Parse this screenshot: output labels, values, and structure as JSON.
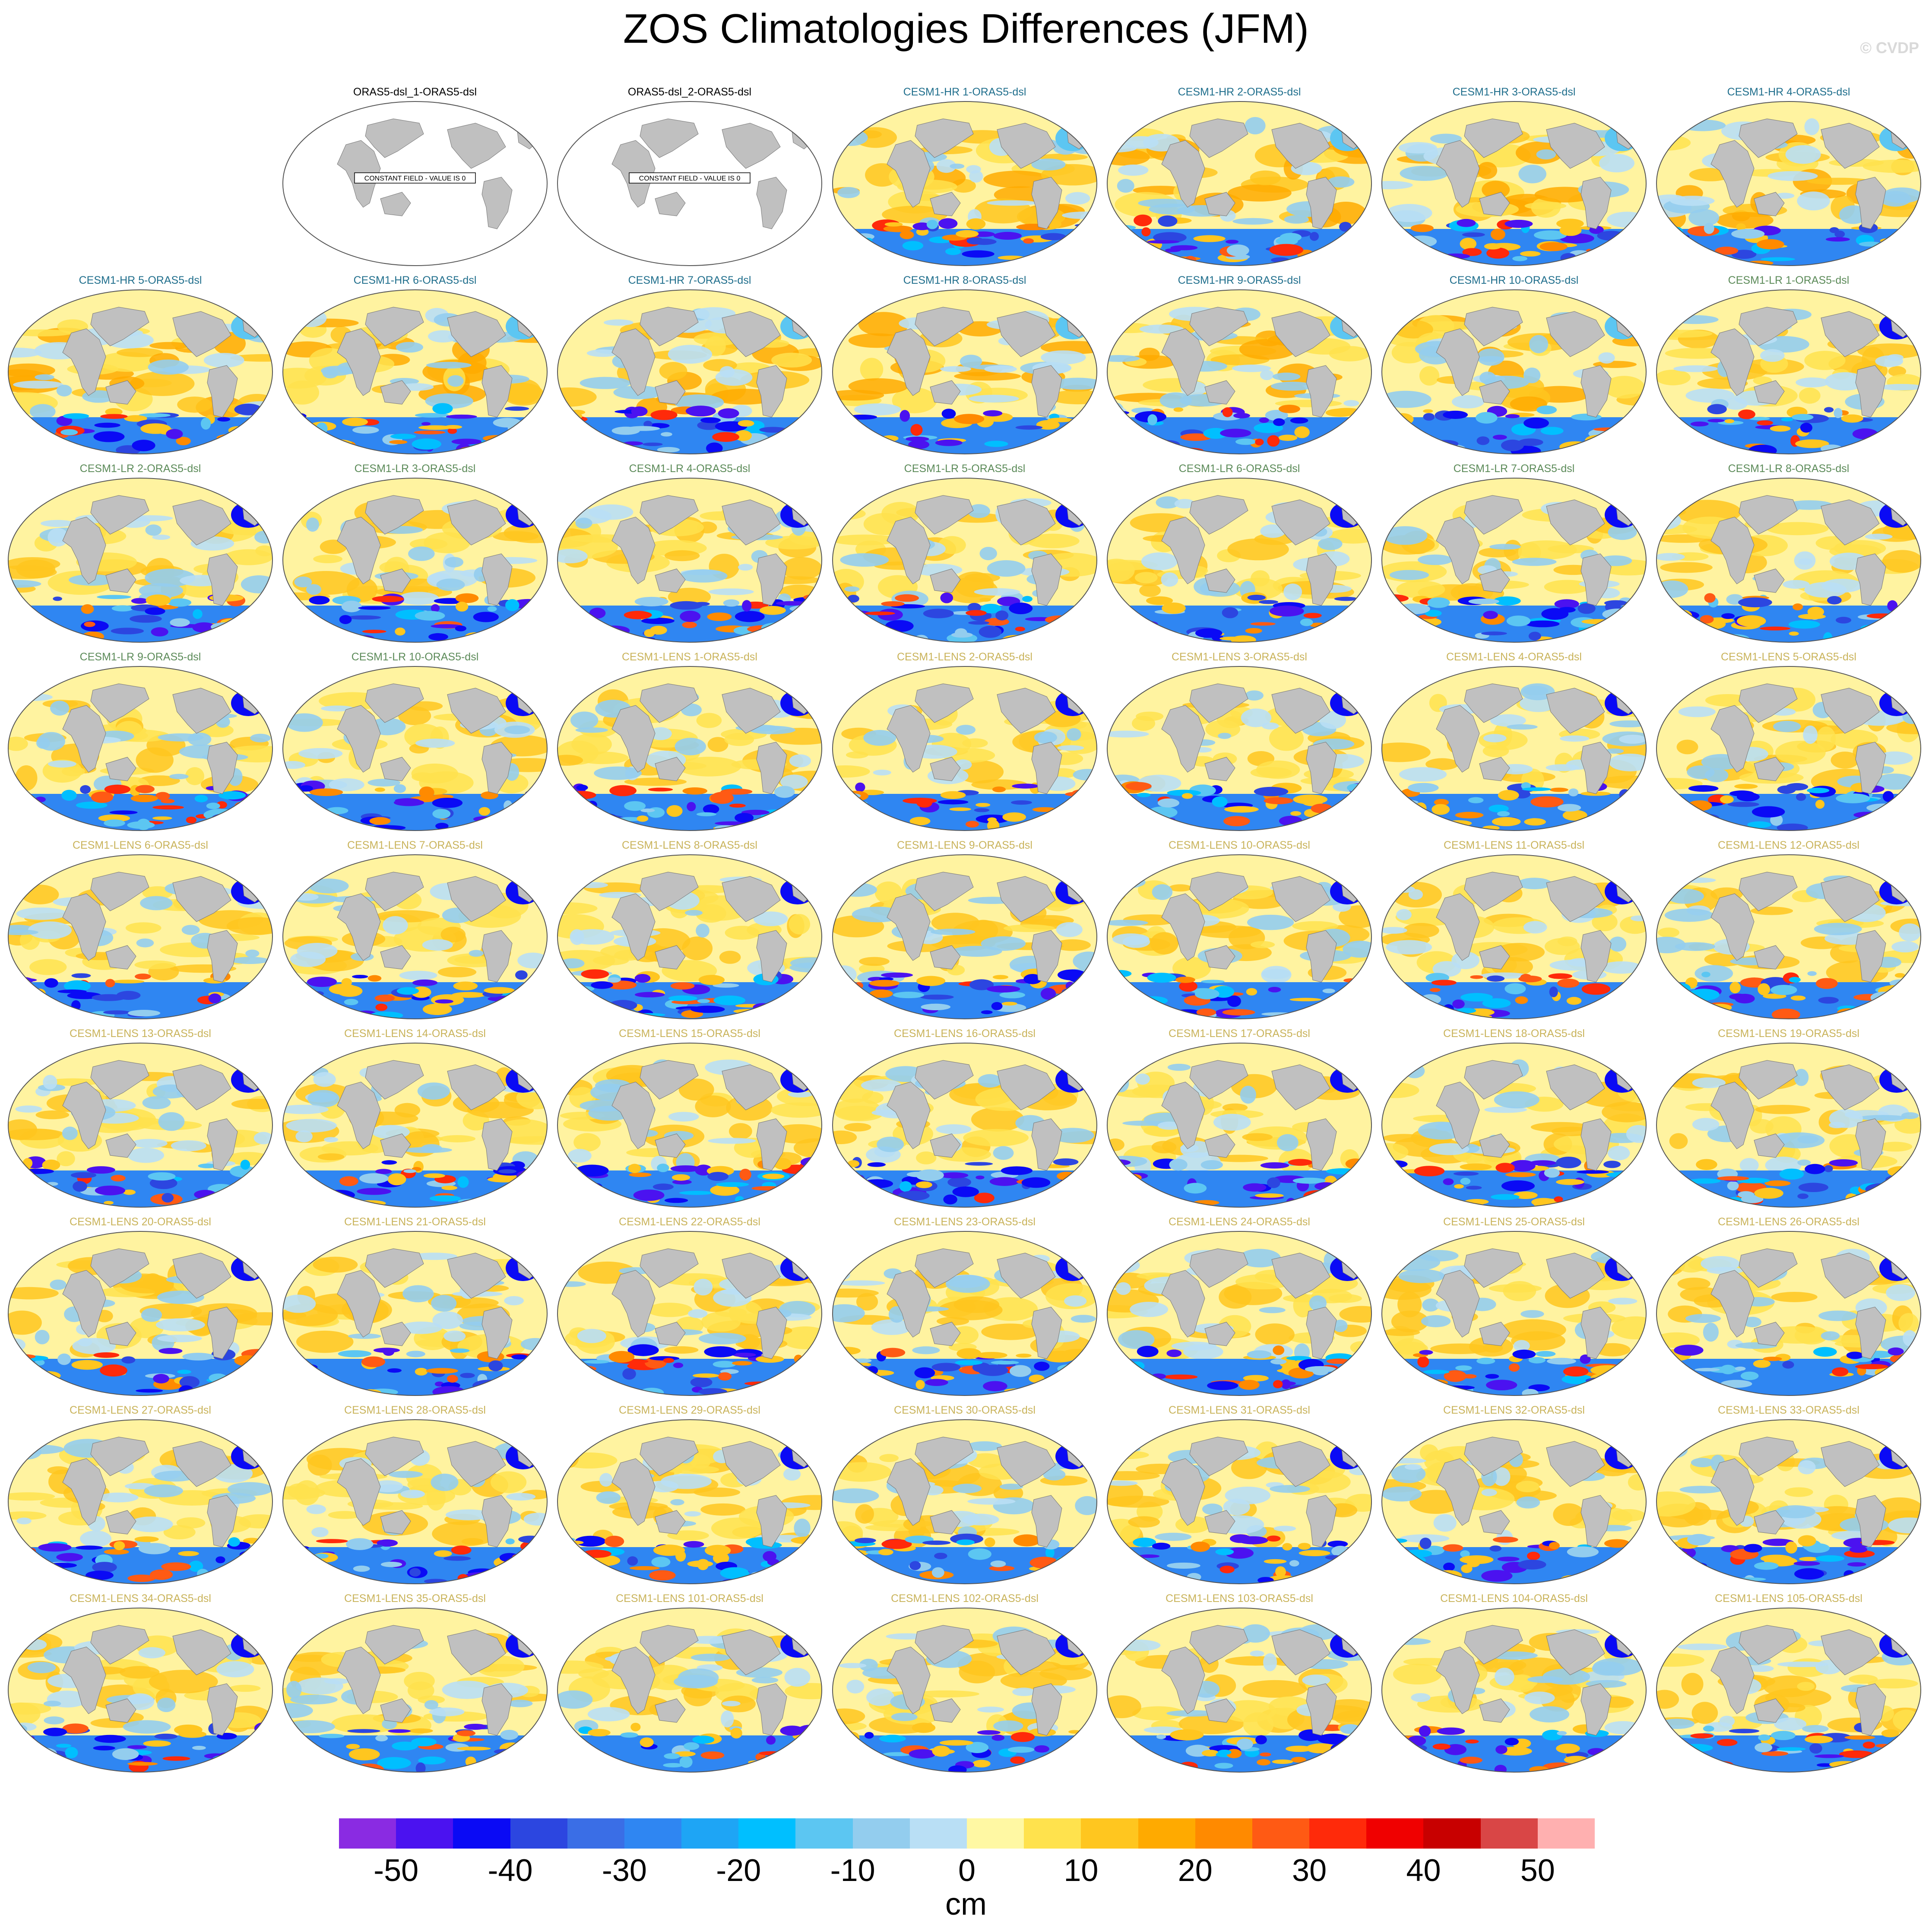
{
  "figure": {
    "title": "ZOS Climatologies Differences (JFM)",
    "watermark": "© CVDP"
  },
  "panels": [
    {
      "title": "ORAS5-dsl_1-ORAS5-dsl",
      "color": "#000000",
      "kind": "constant",
      "note": "CONSTANT FIELD - VALUE IS 0"
    },
    {
      "title": "ORAS5-dsl_2-ORAS5-dsl",
      "color": "#000000",
      "kind": "constant",
      "note": "CONSTANT FIELD - VALUE IS 0"
    },
    {
      "title": "CESM1-HR 1-ORAS5-dsl",
      "color": "#1f6e8c",
      "kind": "hr"
    },
    {
      "title": "CESM1-HR 2-ORAS5-dsl",
      "color": "#1f6e8c",
      "kind": "hr"
    },
    {
      "title": "CESM1-HR 3-ORAS5-dsl",
      "color": "#1f6e8c",
      "kind": "hr"
    },
    {
      "title": "CESM1-HR 4-ORAS5-dsl",
      "color": "#1f6e8c",
      "kind": "hr"
    },
    {
      "title": "CESM1-HR 5-ORAS5-dsl",
      "color": "#1f6e8c",
      "kind": "hr"
    },
    {
      "title": "CESM1-HR 6-ORAS5-dsl",
      "color": "#1f6e8c",
      "kind": "hr"
    },
    {
      "title": "CESM1-HR 7-ORAS5-dsl",
      "color": "#1f6e8c",
      "kind": "hr"
    },
    {
      "title": "CESM1-HR 8-ORAS5-dsl",
      "color": "#1f6e8c",
      "kind": "hr"
    },
    {
      "title": "CESM1-HR 9-ORAS5-dsl",
      "color": "#1f6e8c",
      "kind": "hr"
    },
    {
      "title": "CESM1-HR 10-ORAS5-dsl",
      "color": "#1f6e8c",
      "kind": "hr"
    },
    {
      "title": "CESM1-LR 1-ORAS5-dsl",
      "color": "#5b8a58",
      "kind": "lr"
    },
    {
      "title": "CESM1-LR 2-ORAS5-dsl",
      "color": "#5b8a58",
      "kind": "lr"
    },
    {
      "title": "CESM1-LR 3-ORAS5-dsl",
      "color": "#5b8a58",
      "kind": "lr"
    },
    {
      "title": "CESM1-LR 4-ORAS5-dsl",
      "color": "#5b8a58",
      "kind": "lr"
    },
    {
      "title": "CESM1-LR 5-ORAS5-dsl",
      "color": "#5b8a58",
      "kind": "lr"
    },
    {
      "title": "CESM1-LR 6-ORAS5-dsl",
      "color": "#5b8a58",
      "kind": "lr"
    },
    {
      "title": "CESM1-LR 7-ORAS5-dsl",
      "color": "#5b8a58",
      "kind": "lr"
    },
    {
      "title": "CESM1-LR 8-ORAS5-dsl",
      "color": "#5b8a58",
      "kind": "lr"
    },
    {
      "title": "CESM1-LR 9-ORAS5-dsl",
      "color": "#5b8a58",
      "kind": "lr"
    },
    {
      "title": "CESM1-LR 10-ORAS5-dsl",
      "color": "#5b8a58",
      "kind": "lr"
    },
    {
      "title": "CESM1-LENS 1-ORAS5-dsl",
      "color": "#c9b35a",
      "kind": "lens"
    },
    {
      "title": "CESM1-LENS 2-ORAS5-dsl",
      "color": "#c9b35a",
      "kind": "lens"
    },
    {
      "title": "CESM1-LENS 3-ORAS5-dsl",
      "color": "#c9b35a",
      "kind": "lens"
    },
    {
      "title": "CESM1-LENS 4-ORAS5-dsl",
      "color": "#c9b35a",
      "kind": "lens"
    },
    {
      "title": "CESM1-LENS 5-ORAS5-dsl",
      "color": "#c9b35a",
      "kind": "lens"
    },
    {
      "title": "CESM1-LENS 6-ORAS5-dsl",
      "color": "#c9b35a",
      "kind": "lens"
    },
    {
      "title": "CESM1-LENS 7-ORAS5-dsl",
      "color": "#c9b35a",
      "kind": "lens"
    },
    {
      "title": "CESM1-LENS 8-ORAS5-dsl",
      "color": "#c9b35a",
      "kind": "lens"
    },
    {
      "title": "CESM1-LENS 9-ORAS5-dsl",
      "color": "#c9b35a",
      "kind": "lens"
    },
    {
      "title": "CESM1-LENS 10-ORAS5-dsl",
      "color": "#c9b35a",
      "kind": "lens"
    },
    {
      "title": "CESM1-LENS 11-ORAS5-dsl",
      "color": "#c9b35a",
      "kind": "lens"
    },
    {
      "title": "CESM1-LENS 12-ORAS5-dsl",
      "color": "#c9b35a",
      "kind": "lens"
    },
    {
      "title": "CESM1-LENS 13-ORAS5-dsl",
      "color": "#c9b35a",
      "kind": "lens"
    },
    {
      "title": "CESM1-LENS 14-ORAS5-dsl",
      "color": "#c9b35a",
      "kind": "lens"
    },
    {
      "title": "CESM1-LENS 15-ORAS5-dsl",
      "color": "#c9b35a",
      "kind": "lens"
    },
    {
      "title": "CESM1-LENS 16-ORAS5-dsl",
      "color": "#c9b35a",
      "kind": "lens"
    },
    {
      "title": "CESM1-LENS 17-ORAS5-dsl",
      "color": "#c9b35a",
      "kind": "lens"
    },
    {
      "title": "CESM1-LENS 18-ORAS5-dsl",
      "color": "#c9b35a",
      "kind": "lens"
    },
    {
      "title": "CESM1-LENS 19-ORAS5-dsl",
      "color": "#c9b35a",
      "kind": "lens"
    },
    {
      "title": "CESM1-LENS 20-ORAS5-dsl",
      "color": "#c9b35a",
      "kind": "lens"
    },
    {
      "title": "CESM1-LENS 21-ORAS5-dsl",
      "color": "#c9b35a",
      "kind": "lens"
    },
    {
      "title": "CESM1-LENS 22-ORAS5-dsl",
      "color": "#c9b35a",
      "kind": "lens"
    },
    {
      "title": "CESM1-LENS 23-ORAS5-dsl",
      "color": "#c9b35a",
      "kind": "lens"
    },
    {
      "title": "CESM1-LENS 24-ORAS5-dsl",
      "color": "#c9b35a",
      "kind": "lens"
    },
    {
      "title": "CESM1-LENS 25-ORAS5-dsl",
      "color": "#c9b35a",
      "kind": "lens"
    },
    {
      "title": "CESM1-LENS 26-ORAS5-dsl",
      "color": "#c9b35a",
      "kind": "lens"
    },
    {
      "title": "CESM1-LENS 27-ORAS5-dsl",
      "color": "#c9b35a",
      "kind": "lens"
    },
    {
      "title": "CESM1-LENS 28-ORAS5-dsl",
      "color": "#c9b35a",
      "kind": "lens"
    },
    {
      "title": "CESM1-LENS 29-ORAS5-dsl",
      "color": "#c9b35a",
      "kind": "lens"
    },
    {
      "title": "CESM1-LENS 30-ORAS5-dsl",
      "color": "#c9b35a",
      "kind": "lens"
    },
    {
      "title": "CESM1-LENS 31-ORAS5-dsl",
      "color": "#c9b35a",
      "kind": "lens"
    },
    {
      "title": "CESM1-LENS 32-ORAS5-dsl",
      "color": "#c9b35a",
      "kind": "lens"
    },
    {
      "title": "CESM1-LENS 33-ORAS5-dsl",
      "color": "#c9b35a",
      "kind": "lens"
    },
    {
      "title": "CESM1-LENS 34-ORAS5-dsl",
      "color": "#c9b35a",
      "kind": "lens"
    },
    {
      "title": "CESM1-LENS 35-ORAS5-dsl",
      "color": "#c9b35a",
      "kind": "lens"
    },
    {
      "title": "CESM1-LENS 101-ORAS5-dsl",
      "color": "#c9b35a",
      "kind": "lens"
    },
    {
      "title": "CESM1-LENS 102-ORAS5-dsl",
      "color": "#c9b35a",
      "kind": "lens"
    },
    {
      "title": "CESM1-LENS 103-ORAS5-dsl",
      "color": "#c9b35a",
      "kind": "lens"
    },
    {
      "title": "CESM1-LENS 104-ORAS5-dsl",
      "color": "#c9b35a",
      "kind": "lens"
    },
    {
      "title": "CESM1-LENS 105-ORAS5-dsl",
      "color": "#c9b35a",
      "kind": "lens"
    }
  ],
  "colorbar": {
    "unit": "cm",
    "tick_labels": [
      "-50",
      "-40",
      "-30",
      "-20",
      "-10",
      "0",
      "10",
      "20",
      "30",
      "40",
      "50"
    ],
    "tick_values": [
      -50,
      -40,
      -30,
      -20,
      -10,
      0,
      10,
      20,
      30,
      40,
      50
    ],
    "range": [
      -55,
      55
    ],
    "bin_width": 5,
    "colors": [
      "#8a2be2",
      "#4b12f0",
      "#0a0af5",
      "#2c46e0",
      "#3a6ee6",
      "#2f86f2",
      "#1ea5f5",
      "#00bfff",
      "#5cc6f2",
      "#93cdee",
      "#b9dff5",
      "#fff8a3",
      "#ffe24d",
      "#ffc61f",
      "#ffaa00",
      "#ff8a00",
      "#ff5a14",
      "#ff2a0a",
      "#f00000",
      "#c80000",
      "#d94646",
      "#ffb0b0"
    ]
  },
  "legend_colors": {
    "land": "#c0c0c0",
    "ocean_base": "#fff3a0"
  }
}
